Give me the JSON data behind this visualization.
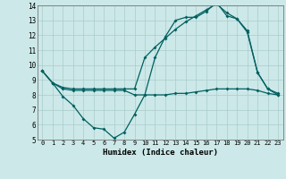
{
  "xlabel": "Humidex (Indice chaleur)",
  "xlim": [
    -0.5,
    23.5
  ],
  "ylim": [
    5,
    14
  ],
  "xticks": [
    0,
    1,
    2,
    3,
    4,
    5,
    6,
    7,
    8,
    9,
    10,
    11,
    12,
    13,
    14,
    15,
    16,
    17,
    18,
    19,
    20,
    21,
    22,
    23
  ],
  "yticks": [
    5,
    6,
    7,
    8,
    9,
    10,
    11,
    12,
    13,
    14
  ],
  "bg_color": "#cce8e8",
  "grid_color": "#aacccc",
  "line_color": "#006060",
  "line1_x": [
    0,
    1,
    2,
    3,
    4,
    5,
    6,
    7,
    8,
    9,
    10,
    11,
    12,
    13,
    14,
    15,
    16,
    17,
    18,
    19,
    20,
    21,
    22,
    23
  ],
  "line1_y": [
    9.6,
    8.8,
    7.9,
    7.3,
    6.4,
    5.8,
    5.7,
    5.1,
    5.5,
    6.7,
    8.0,
    10.5,
    11.9,
    13.0,
    13.2,
    13.2,
    13.6,
    14.2,
    13.3,
    13.1,
    12.3,
    9.5,
    8.4,
    8.1
  ],
  "line2_x": [
    0,
    1,
    2,
    3,
    4,
    5,
    6,
    7,
    8,
    9,
    10,
    11,
    12,
    13,
    14,
    15,
    16,
    17,
    18,
    19,
    20,
    21,
    22,
    23
  ],
  "line2_y": [
    9.6,
    8.8,
    8.4,
    8.3,
    8.3,
    8.3,
    8.3,
    8.3,
    8.3,
    8.0,
    8.0,
    8.0,
    8.0,
    8.1,
    8.1,
    8.2,
    8.3,
    8.4,
    8.4,
    8.4,
    8.4,
    8.3,
    8.1,
    8.0
  ],
  "line3_x": [
    0,
    1,
    2,
    3,
    4,
    5,
    6,
    7,
    8,
    9,
    10,
    11,
    12,
    13,
    14,
    15,
    16,
    17,
    18,
    19,
    20,
    21,
    22,
    23
  ],
  "line3_y": [
    9.6,
    8.8,
    8.5,
    8.4,
    8.4,
    8.4,
    8.4,
    8.4,
    8.4,
    8.4,
    10.5,
    11.2,
    11.8,
    12.4,
    12.9,
    13.3,
    13.7,
    14.1,
    13.5,
    13.1,
    12.2,
    9.5,
    8.4,
    8.0
  ]
}
